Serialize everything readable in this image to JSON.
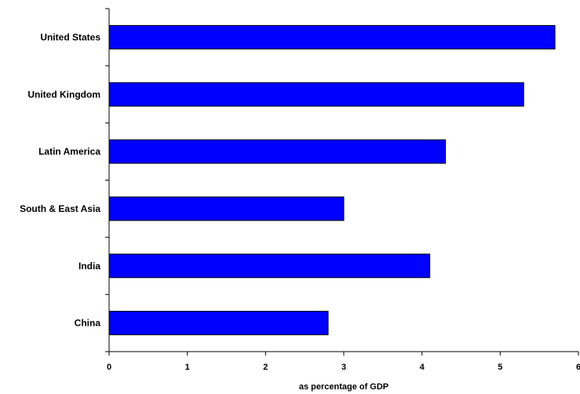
{
  "chart_data": {
    "type": "bar",
    "orientation": "horizontal",
    "categories": [
      "United States",
      "United Kingdom",
      "Latin America",
      "South & East Asia",
      "India",
      "China"
    ],
    "values": [
      5.7,
      5.3,
      4.3,
      3.0,
      4.1,
      2.8
    ],
    "title": "",
    "xlabel": "as percentage of GDP",
    "ylabel": "",
    "xlim": [
      0,
      6
    ],
    "xticks": [
      0,
      1,
      2,
      3,
      4,
      5,
      6
    ],
    "grid": false,
    "legend": "none",
    "bar_color": "#0000FF",
    "bar_edge_color": "#000000"
  }
}
